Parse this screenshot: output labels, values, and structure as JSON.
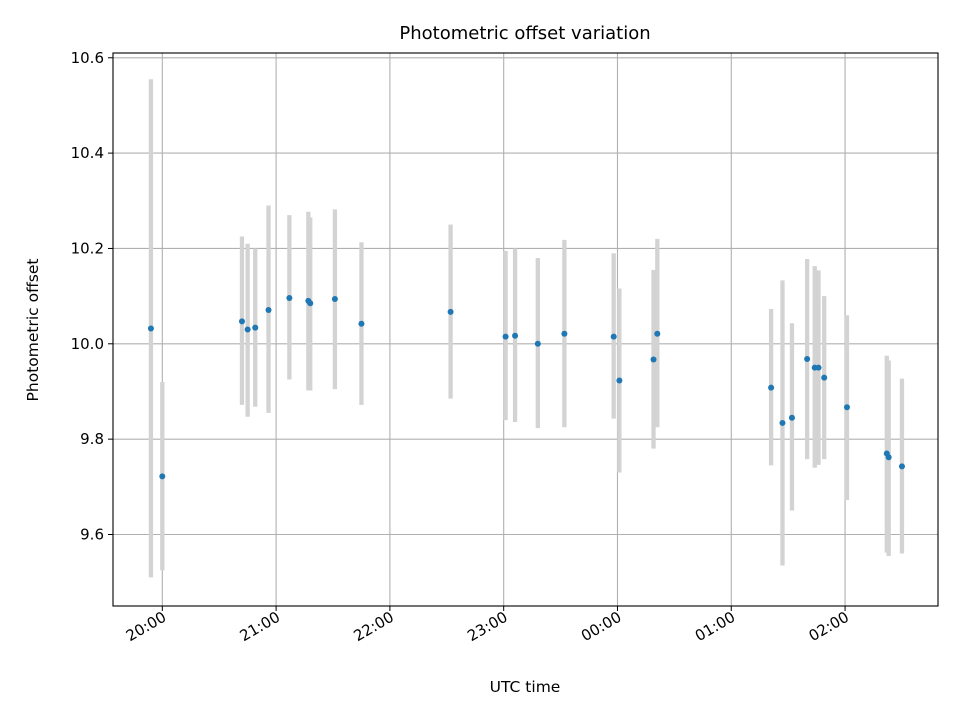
{
  "chart_data": {
    "type": "scatter",
    "title": "Photometric offset variation",
    "xlabel": "UTC time",
    "ylabel": "Photometric offset",
    "x_axis_kind": "time",
    "x_ticks": [
      {
        "t": "2000-01-01T20:00",
        "label": "20:00"
      },
      {
        "t": "2000-01-01T21:00",
        "label": "21:00"
      },
      {
        "t": "2000-01-01T22:00",
        "label": "22:00"
      },
      {
        "t": "2000-01-01T23:00",
        "label": "23:00"
      },
      {
        "t": "2000-01-02T00:00",
        "label": "00:00"
      },
      {
        "t": "2000-01-02T01:00",
        "label": "01:00"
      },
      {
        "t": "2000-01-02T02:00",
        "label": "02:00"
      }
    ],
    "xlim": [
      "2000-01-01T19:34",
      "2000-01-02T02:49"
    ],
    "y_ticks": [
      "9.6",
      "9.8",
      "10.0",
      "10.2",
      "10.4",
      "10.6"
    ],
    "ylim": [
      9.45,
      10.61
    ],
    "grid": true,
    "point_color": "#1f77b4",
    "errorbar_color": "#d3d3d3",
    "series": [
      {
        "points": [
          {
            "t": "2000-01-01T19:54",
            "y": 10.032,
            "lo": 9.51,
            "hi": 10.555
          },
          {
            "t": "2000-01-01T20:00",
            "y": 9.722,
            "lo": 9.525,
            "hi": 9.92
          },
          {
            "t": "2000-01-01T20:42",
            "y": 10.047,
            "lo": 9.872,
            "hi": 10.225
          },
          {
            "t": "2000-01-01T20:45",
            "y": 10.03,
            "lo": 9.847,
            "hi": 10.21
          },
          {
            "t": "2000-01-01T20:49",
            "y": 10.034,
            "lo": 9.868,
            "hi": 10.2
          },
          {
            "t": "2000-01-01T20:56",
            "y": 10.071,
            "lo": 9.855,
            "hi": 10.29
          },
          {
            "t": "2000-01-01T21:07",
            "y": 10.096,
            "lo": 9.925,
            "hi": 10.27
          },
          {
            "t": "2000-01-01T21:17",
            "y": 10.09,
            "lo": 9.902,
            "hi": 10.277
          },
          {
            "t": "2000-01-01T21:18",
            "y": 10.085,
            "lo": 9.902,
            "hi": 10.265
          },
          {
            "t": "2000-01-01T21:31",
            "y": 10.094,
            "lo": 9.905,
            "hi": 10.282
          },
          {
            "t": "2000-01-01T21:45",
            "y": 10.042,
            "lo": 9.872,
            "hi": 10.213
          },
          {
            "t": "2000-01-01T22:32",
            "y": 10.067,
            "lo": 9.885,
            "hi": 10.25
          },
          {
            "t": "2000-01-01T23:01",
            "y": 10.015,
            "lo": 9.84,
            "hi": 10.195
          },
          {
            "t": "2000-01-01T23:06",
            "y": 10.017,
            "lo": 9.836,
            "hi": 10.2
          },
          {
            "t": "2000-01-01T23:18",
            "y": 10.0,
            "lo": 9.823,
            "hi": 10.18
          },
          {
            "t": "2000-01-01T23:32",
            "y": 10.021,
            "lo": 9.825,
            "hi": 10.218
          },
          {
            "t": "2000-01-01T23:58",
            "y": 10.015,
            "lo": 9.843,
            "hi": 10.19
          },
          {
            "t": "2000-01-02T00:01",
            "y": 9.923,
            "lo": 9.73,
            "hi": 10.116
          },
          {
            "t": "2000-01-02T00:19",
            "y": 9.967,
            "lo": 9.78,
            "hi": 10.155
          },
          {
            "t": "2000-01-02T00:21",
            "y": 10.021,
            "lo": 9.825,
            "hi": 10.22
          },
          {
            "t": "2000-01-02T01:21",
            "y": 9.908,
            "lo": 9.745,
            "hi": 10.073
          },
          {
            "t": "2000-01-02T01:27",
            "y": 9.834,
            "lo": 9.535,
            "hi": 10.133
          },
          {
            "t": "2000-01-02T01:32",
            "y": 9.845,
            "lo": 9.65,
            "hi": 10.043
          },
          {
            "t": "2000-01-02T01:40",
            "y": 9.968,
            "lo": 9.758,
            "hi": 10.178
          },
          {
            "t": "2000-01-02T01:44",
            "y": 9.95,
            "lo": 9.74,
            "hi": 10.163
          },
          {
            "t": "2000-01-02T01:46",
            "y": 9.95,
            "lo": 9.746,
            "hi": 10.154
          },
          {
            "t": "2000-01-02T01:49",
            "y": 9.929,
            "lo": 9.758,
            "hi": 10.1
          },
          {
            "t": "2000-01-02T02:01",
            "y": 9.867,
            "lo": 9.672,
            "hi": 10.06
          },
          {
            "t": "2000-01-02T02:22",
            "y": 9.77,
            "lo": 9.562,
            "hi": 9.975
          },
          {
            "t": "2000-01-02T02:23",
            "y": 9.762,
            "lo": 9.555,
            "hi": 9.965
          },
          {
            "t": "2000-01-02T02:30",
            "y": 9.743,
            "lo": 9.56,
            "hi": 9.927
          }
        ]
      }
    ]
  }
}
